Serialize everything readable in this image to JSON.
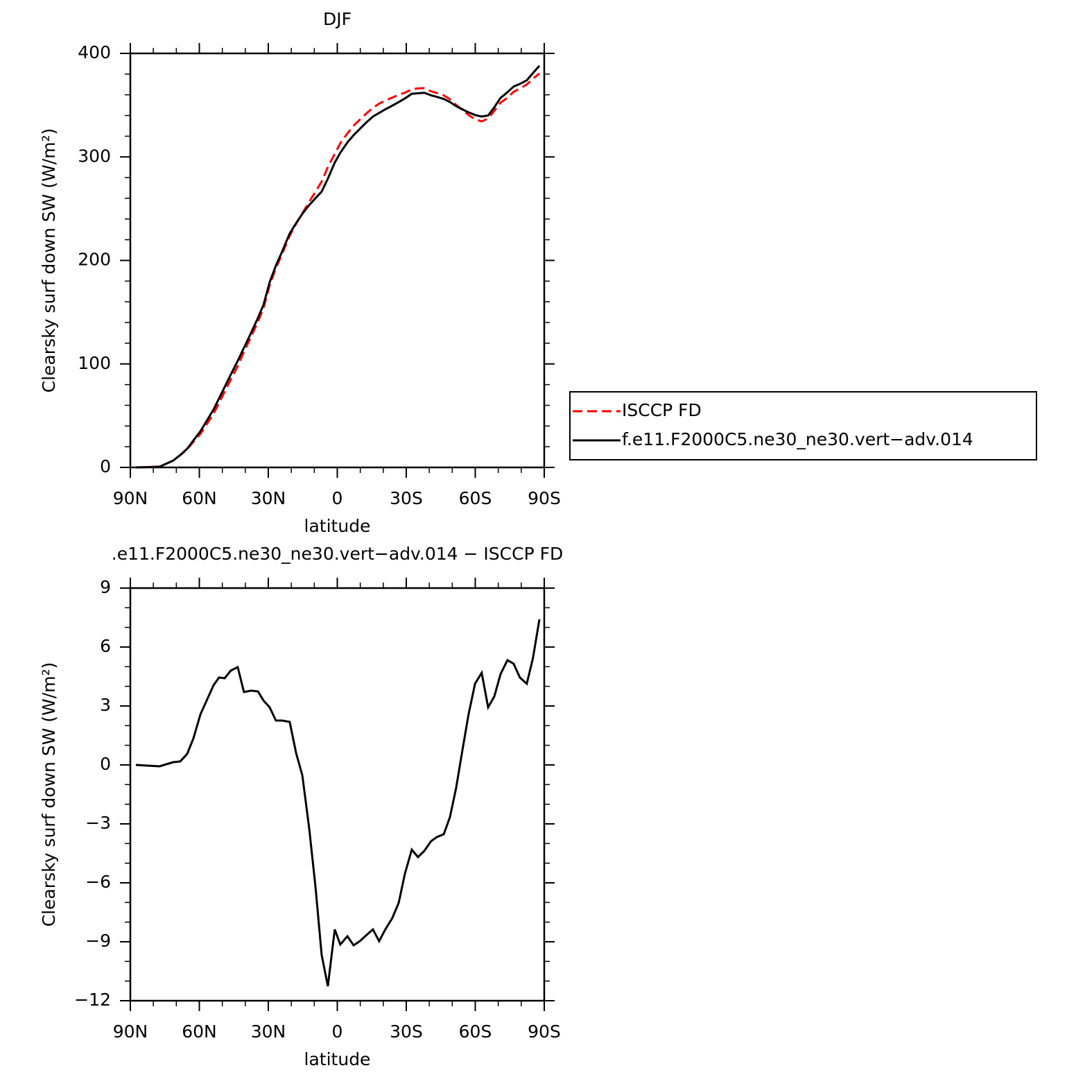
{
  "chart_data": [
    {
      "type": "line",
      "title": "DJF",
      "xlabel": "latitude",
      "ylabel": "Clearsky surf down SW (W/m²)",
      "x": [
        87.6,
        81.9,
        77.3,
        71.3,
        68.3,
        65.3,
        62.6,
        59.5,
        56.8,
        53.8,
        51.4,
        49.0,
        46.3,
        43.3,
        40.6,
        37.5,
        34.5,
        32.1,
        29.4,
        26.7,
        24.0,
        20.7,
        17.9,
        15.2,
        12.2,
        9.5,
        6.8,
        4.1,
        1.1,
        -1.3,
        -4.4,
        -7.1,
        -9.8,
        -12.5,
        -15.5,
        -18.2,
        -20.9,
        -23.9,
        -26.7,
        -29.4,
        -32.4,
        -35.1,
        -37.8,
        -40.8,
        -43.3,
        -46.3,
        -49.0,
        -51.7,
        -54.4,
        -57.1,
        -59.9,
        -62.8,
        -65.6,
        -68.3,
        -71.0,
        -74.0,
        -76.7,
        -79.4,
        -82.4,
        -85.1,
        -87.9
      ],
      "series": [
        {
          "name": "ISCCP FD",
          "color": "#ff0000",
          "dashed": true,
          "values": [
            0,
            0.3,
            0.8,
            6.6,
            11.8,
            17.4,
            24.7,
            32.4,
            41.7,
            51.9,
            62.4,
            73.2,
            85.0,
            98.0,
            111.8,
            126.2,
            140.8,
            153.7,
            176.1,
            192.7,
            206.2,
            223.8,
            235.4,
            245.5,
            256.8,
            266.2,
            276.2,
            290.3,
            302.9,
            313.1,
            322.7,
            330.2,
            336.0,
            341.7,
            347.4,
            351.5,
            354.4,
            357.3,
            360.0,
            362.0,
            365.3,
            366.2,
            366.4,
            363.4,
            361.7,
            359.5,
            355.7,
            350.2,
            345.3,
            340.4,
            336.4,
            334.3,
            337.1,
            344.5,
            352.4,
            357.2,
            362.9,
            366.1,
            369.9,
            375.6,
            380.6
          ]
        },
        {
          "name": "f.e11.F2000C5.ne30_ne30.vert−adv.014",
          "color": "#000000",
          "dashed": false,
          "values": [
            0,
            0.3,
            0.7,
            6.7,
            12,
            18,
            26,
            35,
            45,
            56,
            66.8,
            77.6,
            89.8,
            103,
            115.5,
            130,
            144.5,
            157,
            179,
            195,
            208.5,
            226,
            236,
            245,
            253.5,
            260,
            266.5,
            279,
            294.5,
            304,
            314,
            321,
            327,
            333,
            339,
            342.5,
            346,
            349.5,
            353,
            356.5,
            361,
            361.5,
            362,
            359.5,
            358,
            356,
            353,
            349,
            346,
            343,
            340.5,
            339,
            340,
            348,
            357,
            362.5,
            368,
            370.5,
            374,
            381,
            388
          ]
        }
      ],
      "xlim": [
        90,
        -90
      ],
      "xticks": [
        {
          "value": 90,
          "label": "90N"
        },
        {
          "value": 60,
          "label": "60N"
        },
        {
          "value": 30,
          "label": "30N"
        },
        0,
        {
          "value": -30,
          "label": "30S"
        },
        {
          "value": -60,
          "label": "60S"
        },
        {
          "value": -90,
          "label": "90S"
        }
      ],
      "ylim": [
        0,
        400
      ],
      "yticks": [
        0,
        100,
        200,
        300,
        400
      ],
      "legend": "outside-right"
    },
    {
      "type": "line",
      "title": ".e11.F2000C5.ne30_ne30.vert−adv.014 − ISCCP FD",
      "xlabel": "latitude",
      "ylabel": "Clearsky surf down SW (W/m²)",
      "x": [
        87.6,
        81.9,
        77.3,
        71.3,
        68.3,
        65.3,
        62.6,
        59.5,
        56.8,
        53.8,
        51.4,
        49.0,
        46.3,
        43.3,
        40.6,
        37.5,
        34.5,
        32.1,
        29.4,
        26.7,
        24.0,
        20.7,
        17.9,
        15.2,
        12.2,
        9.5,
        6.8,
        4.1,
        1.1,
        -1.3,
        -4.4,
        -7.1,
        -9.8,
        -12.5,
        -15.5,
        -18.2,
        -20.9,
        -23.9,
        -26.7,
        -29.4,
        -32.4,
        -35.1,
        -37.8,
        -40.8,
        -43.3,
        -46.3,
        -49.0,
        -51.7,
        -54.4,
        -57.1,
        -59.9,
        -62.8,
        -65.6,
        -68.3,
        -71.0,
        -74.0,
        -76.7,
        -79.4,
        -82.4,
        -85.1,
        -87.9
      ],
      "series": [
        {
          "color": "#000000",
          "dashed": false,
          "values": [
            0,
            -0.04,
            -0.07,
            0.14,
            0.18,
            0.56,
            1.34,
            2.58,
            3.28,
            4.06,
            4.45,
            4.41,
            4.8,
            4.98,
            3.71,
            3.78,
            3.74,
            3.28,
            2.93,
            2.26,
            2.26,
            2.19,
            0.6,
            -0.53,
            -3.25,
            -6.18,
            -9.67,
            -11.26,
            -8.37,
            -9.14,
            -8.72,
            -9.18,
            -8.97,
            -8.68,
            -8.37,
            -8.97,
            -8.37,
            -7.8,
            -7.02,
            -5.54,
            -4.31,
            -4.69,
            -4.38,
            -3.88,
            -3.67,
            -3.53,
            -2.65,
            -1.16,
            0.74,
            2.58,
            4.13,
            4.69,
            2.93,
            3.49,
            4.62,
            5.33,
            5.15,
            4.45,
            4.13,
            5.44,
            7.41
          ]
        }
      ],
      "xlim": [
        90,
        -90
      ],
      "xticks": [
        {
          "value": 90,
          "label": "90N"
        },
        {
          "value": 60,
          "label": "60N"
        },
        {
          "value": 30,
          "label": "30N"
        },
        0,
        {
          "value": -30,
          "label": "30S"
        },
        {
          "value": -60,
          "label": "60S"
        },
        {
          "value": -90,
          "label": "90S"
        }
      ],
      "ylim": [
        -12,
        9
      ],
      "yticks": [
        {
          "value": -12,
          "label": "−12"
        },
        {
          "value": -9,
          "label": "−9"
        },
        {
          "value": -6,
          "label": "−6"
        },
        {
          "value": -3,
          "label": "−3"
        },
        0,
        3,
        6,
        9
      ]
    }
  ]
}
